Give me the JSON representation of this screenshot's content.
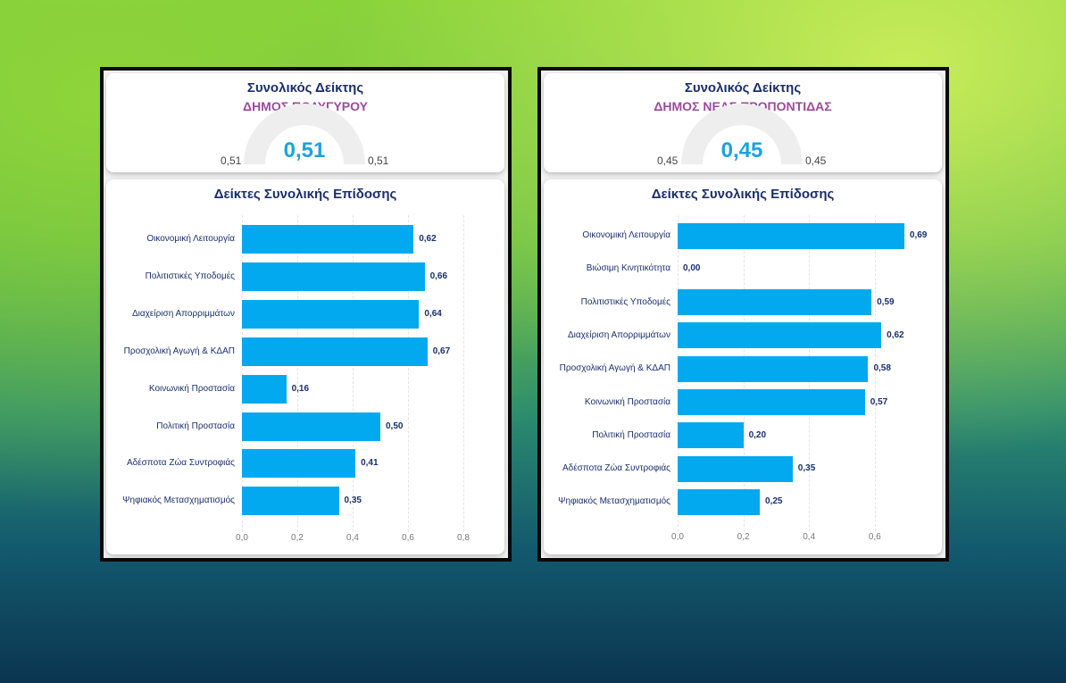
{
  "panels": [
    {
      "gauge_title": "Συνολικός Δείκτης",
      "municipality": "ΔΗΜΟΣ ΠΟΛΥΓΥΡΟΥ",
      "gauge_value": "0,51",
      "gauge_min": "0,51",
      "gauge_max": "0,51"
    },
    {
      "gauge_title": "Συνολικός Δείκτης",
      "municipality": "ΔΗΜΟΣ ΝΕΑΣ ΠΡΟΠΟΝΤΙΔΑΣ",
      "gauge_value": "0,45",
      "gauge_min": "0,45",
      "gauge_max": "0,45"
    }
  ],
  "colors": {
    "bar": "#03a9ee",
    "title": "#1a2f6b",
    "municipality": "#9b4a9b",
    "gauge_value": "#1aa3e0"
  },
  "chart_data": [
    {
      "type": "bar",
      "orientation": "horizontal",
      "title": "Δείκτες Συνολικής Επίδοσης",
      "categories": [
        "Οικονομική Λειτουργία",
        "Πολιτιστικές Υποδομές",
        "Διαχείριση Απορριμμάτων",
        "Προσχολική Αγωγή & ΚΔΑΠ",
        "Κοινωνική Προστασία",
        "Πολιτική Προστασία",
        "Αδέσποτα Ζώα Συντροφιάς",
        "Ψηφιακός Μετασχηματισμός"
      ],
      "values": [
        0.62,
        0.66,
        0.64,
        0.67,
        0.16,
        0.5,
        0.41,
        0.35
      ],
      "labels": [
        "0,62",
        "0,66",
        "0,64",
        "0,67",
        "0,16",
        "0,50",
        "0,41",
        "0,35"
      ],
      "xticks": [
        "0,0",
        "0,2",
        "0,4",
        "0,6",
        "0,8"
      ],
      "xlim": [
        0,
        0.8
      ],
      "grid": true
    },
    {
      "type": "bar",
      "orientation": "horizontal",
      "title": "Δείκτες Συνολικής Επίδοσης",
      "categories": [
        "Οικονομική Λειτουργία",
        "Βιώσιμη Κινητικότητα",
        "Πολιτιστικές Υποδομές",
        "Διαχείριση Απορριμμάτων",
        "Προσχολική Αγωγή & ΚΔΑΠ",
        "Κοινωνική Προστασία",
        "Πολιτική Προστασία",
        "Αδέσποτα Ζώα Συντροφιάς",
        "Ψηφιακός Μετασχηματισμός"
      ],
      "values": [
        0.69,
        0.0,
        0.59,
        0.62,
        0.58,
        0.57,
        0.2,
        0.35,
        0.25
      ],
      "labels": [
        "0,69",
        "0,00",
        "0,59",
        "0,62",
        "0,58",
        "0,57",
        "0,20",
        "0,35",
        "0,25"
      ],
      "xticks": [
        "0,0",
        "0,2",
        "0,4",
        "0,6"
      ],
      "xlim": [
        0,
        0.72
      ],
      "grid": true
    }
  ]
}
